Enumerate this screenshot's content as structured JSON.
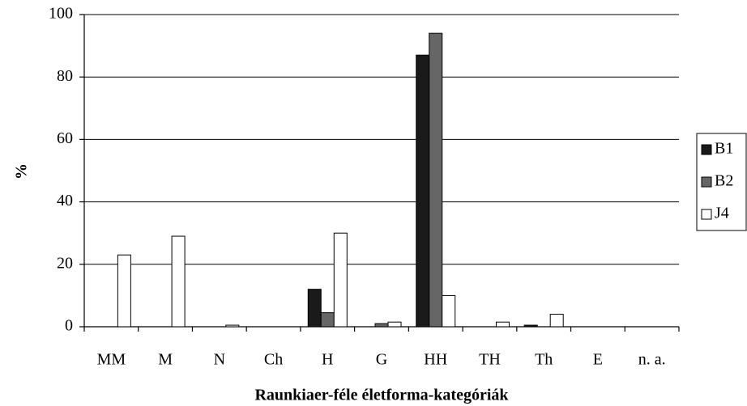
{
  "chart_data": {
    "type": "bar",
    "xlabel": "Raunkiaer-féle életforma-kategóriák",
    "ylabel": "%",
    "categories": [
      "MM",
      "M",
      "N",
      "Ch",
      "H",
      "G",
      "HH",
      "TH",
      "Th",
      "E",
      "n. a."
    ],
    "series": [
      {
        "name": "B1",
        "color": "#1a1a1a",
        "values": [
          0,
          0,
          0,
          0,
          12,
          0,
          87,
          0,
          0.5,
          0,
          0
        ]
      },
      {
        "name": "B2",
        "color": "#666666",
        "values": [
          0,
          0,
          0,
          0,
          4.5,
          1,
          94,
          0,
          0,
          0,
          0
        ]
      },
      {
        "name": "J4",
        "color": "#ffffff",
        "values": [
          23,
          29,
          0.5,
          0,
          30,
          1.5,
          10,
          1.5,
          4,
          0,
          0
        ]
      }
    ],
    "ylim": [
      0,
      100
    ],
    "yticks": [
      0,
      20,
      40,
      60,
      80,
      100
    ],
    "grid": true,
    "legend": "right"
  }
}
